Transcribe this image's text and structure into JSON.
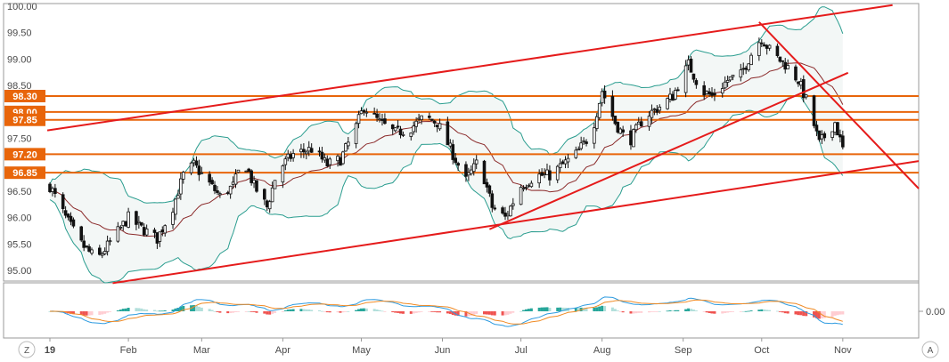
{
  "chart_data": [
    {
      "type": "candlestick",
      "title": "",
      "x_axis": {
        "tick_labels": [
          "19",
          "Feb",
          "Mar",
          "Apr",
          "May",
          "Jun",
          "Jul",
          "Aug",
          "Sep",
          "Oct",
          "Nov"
        ],
        "range": [
          "2019-01-02",
          "2019-11-30"
        ]
      },
      "y_axis": {
        "tick_labels": [
          "95.00",
          "95.50",
          "96.00",
          "96.50",
          "97.00",
          "97.50",
          "98.00",
          "98.50",
          "99.00",
          "99.50",
          "100.00"
        ],
        "ylim": [
          94.8,
          100.05
        ]
      },
      "horizontal_levels": [
        {
          "label": "98.30",
          "value": 98.3
        },
        {
          "label": "98.00",
          "value": 98.0
        },
        {
          "label": "97.85",
          "value": 97.85
        },
        {
          "label": "97.20",
          "value": 97.2
        },
        {
          "label": "96.85",
          "value": 96.85
        }
      ],
      "trend_lines": [
        {
          "name": "upper channel",
          "from": [
            "2019-01-01",
            97.65
          ],
          "to": [
            "2019-11-20",
            100.02
          ]
        },
        {
          "name": "lower channel",
          "from": [
            "2019-01-26",
            94.76
          ],
          "to": [
            "2019-11-30",
            97.07
          ]
        },
        {
          "name": "rising support",
          "from": [
            "2019-06-19",
            95.78
          ],
          "to": [
            "2019-11-03",
            98.74
          ]
        },
        {
          "name": "falling resistance",
          "from": [
            "2019-09-30",
            99.7
          ],
          "to": [
            "2019-11-30",
            96.55
          ]
        }
      ],
      "candles_close_path": [
        [
          "2019-01-02",
          96.6
        ],
        [
          "2019-01-08",
          96.0
        ],
        [
          "2019-01-14",
          95.5
        ],
        [
          "2019-01-20",
          95.2
        ],
        [
          "2019-01-26",
          95.6
        ],
        [
          "2019-02-01",
          96.0
        ],
        [
          "2019-02-06",
          95.8
        ],
        [
          "2019-02-12",
          95.6
        ],
        [
          "2019-02-18",
          96.2
        ],
        [
          "2019-02-22",
          96.8
        ],
        [
          "2019-02-26",
          97.0
        ],
        [
          "2019-03-03",
          96.7
        ],
        [
          "2019-03-08",
          96.4
        ],
        [
          "2019-03-13",
          96.6
        ],
        [
          "2019-03-17",
          97.1
        ],
        [
          "2019-03-21",
          96.6
        ],
        [
          "2019-03-26",
          96.2
        ],
        [
          "2019-03-30",
          96.9
        ],
        [
          "2019-04-05",
          97.2
        ],
        [
          "2019-04-12",
          97.3
        ],
        [
          "2019-04-18",
          97.0
        ],
        [
          "2019-04-23",
          97.1
        ],
        [
          "2019-04-28",
          97.6
        ],
        [
          "2019-05-02",
          98.1
        ],
        [
          "2019-05-08",
          97.8
        ],
        [
          "2019-05-14",
          97.6
        ],
        [
          "2019-05-20",
          97.7
        ],
        [
          "2019-05-25",
          97.9
        ],
        [
          "2019-05-30",
          97.8
        ],
        [
          "2019-06-05",
          97.2
        ],
        [
          "2019-06-10",
          96.7
        ],
        [
          "2019-06-15",
          97.1
        ],
        [
          "2019-06-20",
          96.2
        ],
        [
          "2019-06-25",
          96.0
        ],
        [
          "2019-07-01",
          96.6
        ],
        [
          "2019-07-07",
          96.8
        ],
        [
          "2019-07-12",
          96.8
        ],
        [
          "2019-07-17",
          97.0
        ],
        [
          "2019-07-22",
          97.2
        ],
        [
          "2019-07-28",
          97.6
        ],
        [
          "2019-08-01",
          98.4
        ],
        [
          "2019-08-06",
          97.8
        ],
        [
          "2019-08-11",
          97.4
        ],
        [
          "2019-08-17",
          97.9
        ],
        [
          "2019-08-23",
          98.1
        ],
        [
          "2019-08-28",
          98.3
        ],
        [
          "2019-09-03",
          98.9
        ],
        [
          "2019-09-08",
          98.4
        ],
        [
          "2019-09-12",
          98.3
        ],
        [
          "2019-09-18",
          98.6
        ],
        [
          "2019-09-23",
          98.7
        ],
        [
          "2019-09-28",
          99.2
        ],
        [
          "2019-10-01",
          99.4
        ],
        [
          "2019-10-05",
          99.1
        ],
        [
          "2019-10-10",
          98.9
        ],
        [
          "2019-10-15",
          98.6
        ],
        [
          "2019-10-19",
          98.1
        ],
        [
          "2019-10-23",
          97.4
        ],
        [
          "2019-10-26",
          97.6
        ],
        [
          "2019-10-29",
          97.8
        ],
        [
          "2019-11-01",
          97.3
        ]
      ],
      "indicators": [
        "Bollinger Bands",
        "Moving Average",
        "MACD"
      ],
      "macd_panel": {
        "tick_labels": [
          "0.00"
        ]
      }
    }
  ],
  "toolbar": {
    "left_button": "Z",
    "right_button": "A"
  },
  "colors": {
    "level": "#e8650a",
    "trend": "#e51b1b",
    "band": "#2a9d8f",
    "ma": "#8b2a2a",
    "up": "#ffffff",
    "down": "#111111",
    "macd_line": "#2d9be0",
    "signal_line": "#f08a24",
    "hist_pos_strong": "#26a69a",
    "hist_pos_weak": "#b2dfdb",
    "hist_neg_strong": "#ef5350",
    "hist_neg_weak": "#ffcdd2"
  }
}
